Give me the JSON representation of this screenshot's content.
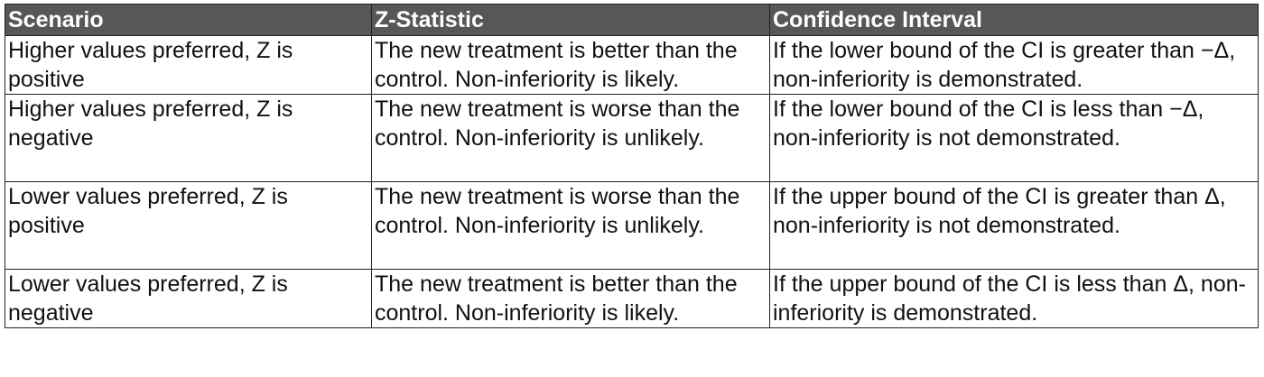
{
  "table": {
    "headers": [
      "Scenario",
      "Z-Statistic",
      "Confidence Interval"
    ],
    "rows": [
      {
        "scenario": "Higher values preferred, Z is positive",
        "z_statistic": "The new treatment is better than the control. Non-inferiority is likely.",
        "confidence_interval": "If the lower bound of the CI is greater than −Δ, non-inferiority is demonstrated."
      },
      {
        "scenario": "Higher values preferred, Z is negative",
        "z_statistic": "The new treatment is worse than the control. Non-inferiority is unlikely.",
        "confidence_interval": "If the lower bound of the CI is less than −Δ, non-inferiority is not demonstrated."
      },
      {
        "scenario": "Lower values preferred, Z is positive",
        "z_statistic": "The new treatment is worse than the control. Non-inferiority is unlikely.",
        "confidence_interval": "If the upper bound of the CI is greater than Δ, non-inferiority is not demonstrated."
      },
      {
        "scenario": "Lower values preferred, Z is negative",
        "z_statistic": "The new treatment is better than the control. Non-inferiority is likely.",
        "confidence_interval": "If the upper bound of the CI is less than Δ, non-inferiority is demonstrated."
      }
    ]
  },
  "colors": {
    "header_background": "#575757",
    "header_text": "#ffffff",
    "border": "#222222",
    "body_text": "#111111"
  }
}
